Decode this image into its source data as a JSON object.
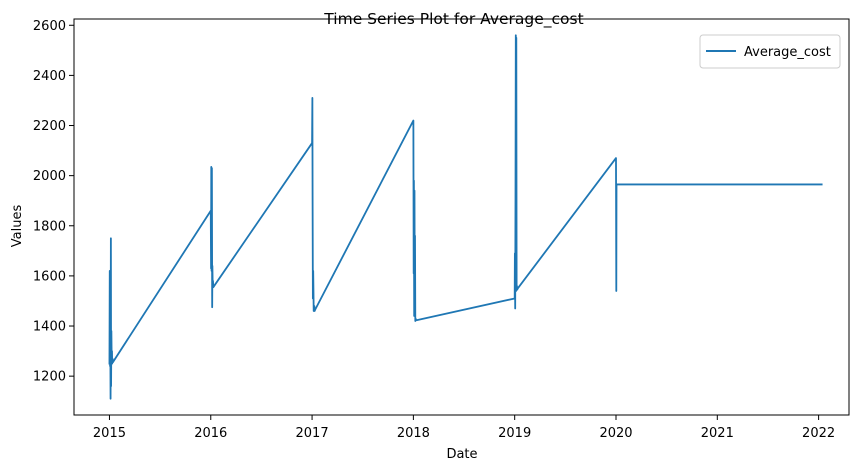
{
  "chart_data": {
    "type": "line",
    "title": "Time Series Plot for Average_cost",
    "xlabel": "Date",
    "ylabel": "Values",
    "xlim": [
      2014.65,
      2022.3
    ],
    "ylim": [
      1045,
      2625
    ],
    "x_ticks": [
      {
        "value": 2015,
        "label": "2015"
      },
      {
        "value": 2016,
        "label": "2016"
      },
      {
        "value": 2017,
        "label": "2017"
      },
      {
        "value": 2018,
        "label": "2018"
      },
      {
        "value": 2019,
        "label": "2019"
      },
      {
        "value": 2020,
        "label": "2020"
      },
      {
        "value": 2021,
        "label": "2021"
      },
      {
        "value": 2022,
        "label": "2022"
      }
    ],
    "y_ticks": [
      {
        "value": 1200,
        "label": "1200"
      },
      {
        "value": 1400,
        "label": "1400"
      },
      {
        "value": 1600,
        "label": "1600"
      },
      {
        "value": 1800,
        "label": "1800"
      },
      {
        "value": 2000,
        "label": "2000"
      },
      {
        "value": 2200,
        "label": "2200"
      },
      {
        "value": 2400,
        "label": "2400"
      },
      {
        "value": 2600,
        "label": "2600"
      }
    ],
    "legend": {
      "position": "top-right"
    },
    "grid": false,
    "series": [
      {
        "name": "Average_cost",
        "color": "#1f77b4",
        "x": [
          2015.0,
          2015.003,
          2015.006,
          2015.008,
          2015.011,
          2015.014,
          2015.016,
          2015.019,
          2015.022,
          2015.025,
          2015.027,
          2015.03,
          2015.033,
          2016.0,
          2016.003,
          2016.005,
          2016.008,
          2016.011,
          2016.014,
          2016.016,
          2016.019,
          2016.022,
          2016.025,
          2017.0,
          2017.003,
          2017.005,
          2017.008,
          2017.011,
          2017.014,
          2017.016,
          2017.019,
          2017.022,
          2017.025,
          2017.03,
          2018.0,
          2018.003,
          2018.005,
          2018.008,
          2018.011,
          2018.014,
          2018.016,
          2018.019,
          2018.022,
          2018.025,
          2018.03,
          2019.0,
          2019.002,
          2019.005,
          2019.008,
          2019.011,
          2019.014,
          2019.016,
          2019.019,
          2019.022,
          2019.025,
          2019.03,
          2020.0,
          2020.003,
          2020.005,
          2020.008,
          2022.03
        ],
        "values": [
          1250,
          1620,
          1240,
          1380,
          1110,
          1750,
          1160,
          1380,
          1260,
          1300,
          1250,
          1270,
          1255,
          1860,
          1630,
          2035,
          1620,
          2030,
          1475,
          1640,
          1560,
          1580,
          1555,
          2130,
          2310,
          1920,
          1510,
          1620,
          1530,
          1460,
          1470,
          1480,
          1460,
          1465,
          2220,
          1610,
          1980,
          1440,
          1940,
          1450,
          1760,
          1420,
          1430,
          1425,
          1423,
          1510,
          1690,
          1470,
          1910,
          2560,
          1540,
          2550,
          1560,
          1560,
          1545,
          1550,
          2070,
          1540,
          1965,
          1965,
          1965
        ]
      }
    ]
  }
}
